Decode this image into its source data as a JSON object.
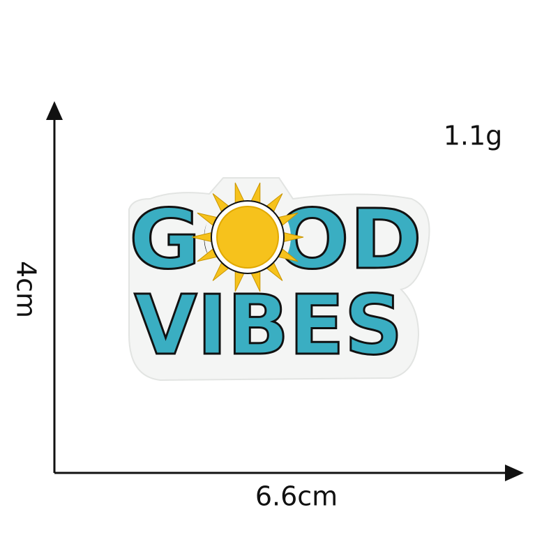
{
  "labels": {
    "weight": "1.1g",
    "height": "4cm",
    "width": "6.6cm"
  },
  "patch": {
    "lines": [
      "GOOD",
      "VIBES"
    ]
  }
}
